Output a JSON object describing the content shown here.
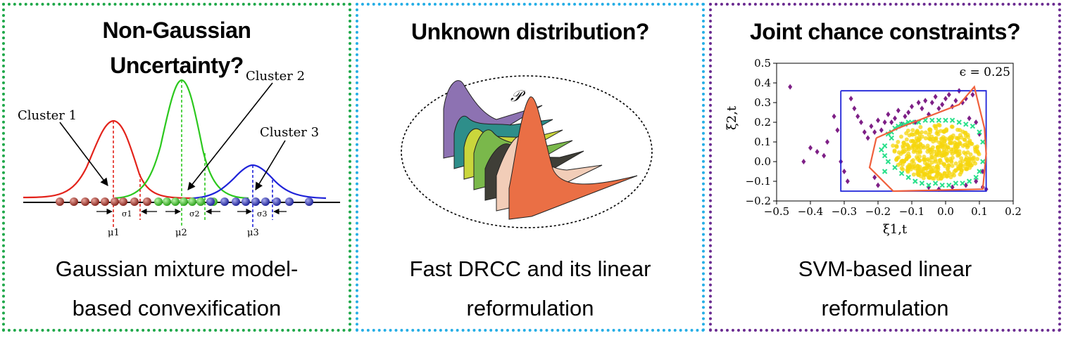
{
  "panels": [
    {
      "title_line1": "Non-Gaussian",
      "title_line2": "Uncertainty?",
      "caption_line1": "Gaussian mixture model-",
      "caption_line2": "based convexification",
      "border_color": "#1fa84a",
      "figure": {
        "cluster_labels": [
          "Cluster 1",
          "Cluster 2",
          "Cluster 3"
        ],
        "mu_labels": [
          "μ1",
          "μ2",
          "μ3"
        ],
        "sigma_labels": [
          "σ1",
          "σ2",
          "σ3"
        ],
        "colors": [
          "#e3231b",
          "#2cc81e",
          "#1f23d9"
        ]
      }
    },
    {
      "title": "Unknown distribution?",
      "caption_line1": "Fast DRCC and its linear",
      "caption_line2": "reformulation",
      "border_color": "#25aee6",
      "figure": {
        "set_label": "𝒫"
      }
    },
    {
      "title": "Joint chance constraints?",
      "caption_line1": "SVM-based linear",
      "caption_line2": "reformulation",
      "border_color": "#6b2c91",
      "figure": {
        "annotation": "ϵ = 0.25",
        "xlabel": "ξ1,t",
        "ylabel": "ξ2,t"
      }
    }
  ],
  "chart_data": {
    "type": "scatter",
    "title": "",
    "xlabel": "ξ1,t",
    "ylabel": "ξ2,t",
    "xlim": [
      -0.5,
      0.2
    ],
    "ylim": [
      -0.2,
      0.5
    ],
    "xticks": [
      "−0.5",
      "−0.4",
      "−0.3",
      "−0.2",
      "−0.1",
      "0.0",
      "0.1",
      "0.2"
    ],
    "yticks": [
      "−0.2",
      "−0.1",
      "0.0",
      "0.1",
      "0.2",
      "0.3",
      "0.4",
      "0.5"
    ],
    "annotation": "ϵ = 0.25",
    "grid": false,
    "series": [
      {
        "kind": "box",
        "color": "#1f23d9",
        "x": [
          -0.31,
          0.12,
          0.12,
          -0.31,
          -0.31
        ],
        "y": [
          0.36,
          0.36,
          -0.15,
          -0.15,
          0.36
        ]
      },
      {
        "kind": "polygon",
        "color": "#f0603c",
        "x": [
          -0.205,
          -0.14,
          0.04,
          0.085,
          0.115,
          0.12,
          0.11,
          -0.155,
          -0.225,
          -0.205
        ],
        "y": [
          0.12,
          0.17,
          0.29,
          0.38,
          0.17,
          0.04,
          -0.14,
          -0.15,
          -0.03,
          0.12
        ]
      },
      {
        "kind": "diamond",
        "color": "#7e1f86",
        "x": [
          -0.46,
          -0.33,
          -0.32,
          -0.36,
          -0.38,
          -0.4,
          -0.42,
          -0.35,
          -0.31,
          -0.28,
          -0.27,
          -0.26,
          -0.25,
          -0.24,
          -0.23,
          -0.22,
          -0.21,
          -0.2,
          -0.19,
          -0.18,
          -0.17,
          -0.16,
          -0.15,
          -0.14,
          -0.13,
          -0.12,
          -0.11,
          -0.1,
          -0.09,
          -0.08,
          -0.07,
          -0.06,
          -0.05,
          -0.04,
          -0.03,
          -0.02,
          -0.01,
          0.0,
          0.01,
          0.02,
          0.03,
          0.04,
          0.05,
          0.06,
          0.07,
          0.08,
          0.09,
          0.1,
          0.11,
          0.12,
          -0.3,
          -0.29,
          -0.2,
          -0.21,
          -0.05,
          -0.02,
          0.02,
          0.06,
          0.09,
          0.11
        ],
        "y": [
          0.38,
          0.23,
          0.16,
          0.03,
          0.05,
          0.07,
          0.0,
          0.1,
          0.0,
          0.32,
          0.27,
          0.23,
          0.2,
          0.15,
          0.12,
          0.18,
          0.15,
          0.21,
          0.16,
          0.2,
          0.24,
          0.2,
          0.22,
          0.26,
          0.19,
          0.23,
          0.25,
          0.28,
          0.2,
          0.3,
          0.27,
          0.31,
          0.24,
          0.3,
          0.33,
          0.27,
          0.29,
          0.32,
          0.34,
          0.28,
          0.31,
          0.36,
          0.3,
          0.32,
          0.22,
          0.34,
          0.2,
          0.14,
          -0.05,
          -0.14,
          -0.05,
          -0.1,
          -0.12,
          -0.08,
          -0.13,
          -0.14,
          -0.13,
          -0.12,
          -0.1,
          -0.13
        ]
      },
      {
        "kind": "cross",
        "color": "#28e08a",
        "x": [
          -0.18,
          -0.17,
          -0.16,
          -0.15,
          -0.14,
          -0.13,
          -0.12,
          -0.11,
          -0.1,
          -0.08,
          -0.06,
          -0.04,
          -0.02,
          0.0,
          0.02,
          0.04,
          0.06,
          0.08,
          0.1,
          0.11,
          0.11,
          0.1,
          0.09,
          0.07,
          0.05,
          0.03,
          0.01,
          -0.01,
          -0.03,
          -0.05,
          -0.07,
          -0.09,
          -0.11,
          -0.13,
          -0.15,
          -0.17,
          -0.18,
          -0.19,
          -0.18,
          -0.16
        ],
        "y": [
          0.08,
          0.14,
          0.15,
          0.17,
          0.18,
          0.19,
          0.19,
          0.2,
          0.2,
          0.2,
          0.21,
          0.21,
          0.21,
          0.21,
          0.21,
          0.2,
          0.19,
          0.18,
          0.15,
          0.1,
          0.0,
          -0.05,
          -0.08,
          -0.1,
          -0.11,
          -0.11,
          -0.12,
          -0.12,
          -0.11,
          -0.12,
          -0.11,
          -0.1,
          -0.08,
          -0.06,
          -0.03,
          0.0,
          0.03,
          0.06,
          -0.05,
          0.12
        ]
      },
      {
        "kind": "point",
        "color": "#f5d60c",
        "center": [
          -0.03,
          0.05
        ],
        "spread": [
          0.13,
          0.14
        ],
        "count": 420
      }
    ]
  }
}
